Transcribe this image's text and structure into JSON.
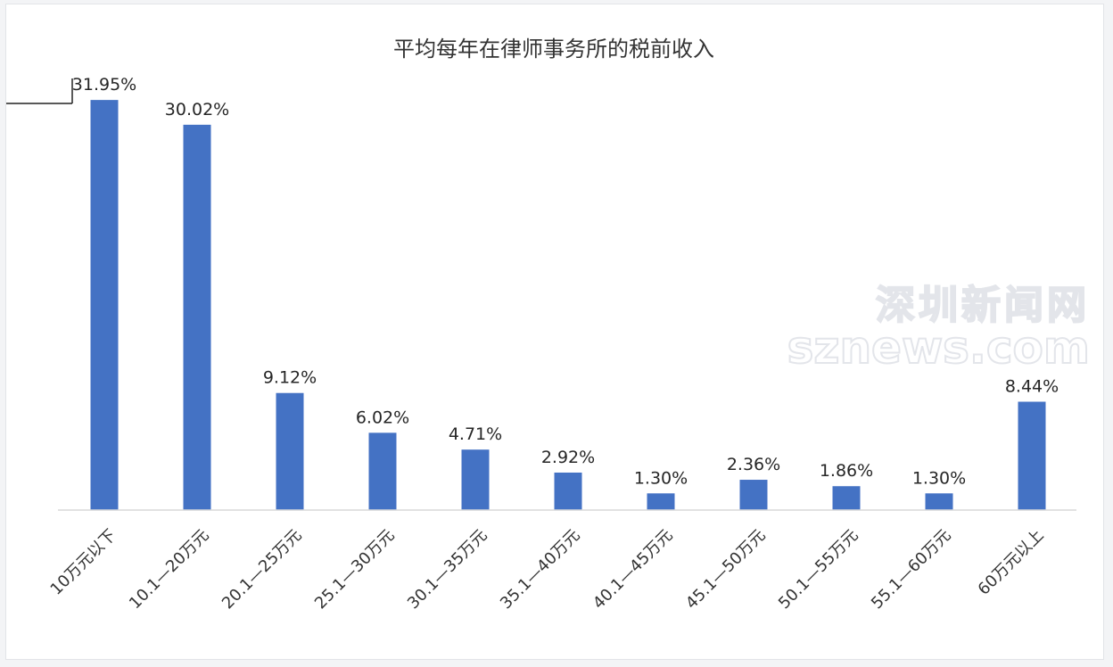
{
  "chart_data": {
    "type": "bar",
    "title": "平均每年在律师事务所的税前收入",
    "categories": [
      "10万元以下",
      "10.1—20万元",
      "20.1—25万元",
      "25.1—30万元",
      "30.1—35万元",
      "35.1—40万元",
      "40.1—45万元",
      "45.1—50万元",
      "50.1—55万元",
      "55.1—60万元",
      "60万元以上"
    ],
    "values": [
      31.95,
      30.02,
      9.12,
      6.02,
      4.71,
      2.92,
      1.3,
      2.36,
      1.86,
      1.3,
      8.44
    ],
    "labels": [
      "31.95%",
      "30.02%",
      "9.12%",
      "6.02%",
      "4.71%",
      "2.92%",
      "1.30%",
      "2.36%",
      "1.86%",
      "1.30%",
      "8.44%"
    ],
    "ylim": [
      0,
      33
    ],
    "grid": false,
    "legend": "none",
    "bar_color": "#4472c4",
    "axis_color": "#d9d9d9"
  },
  "watermark": {
    "line1": "深圳新闻网",
    "line2": "sznews.com"
  }
}
